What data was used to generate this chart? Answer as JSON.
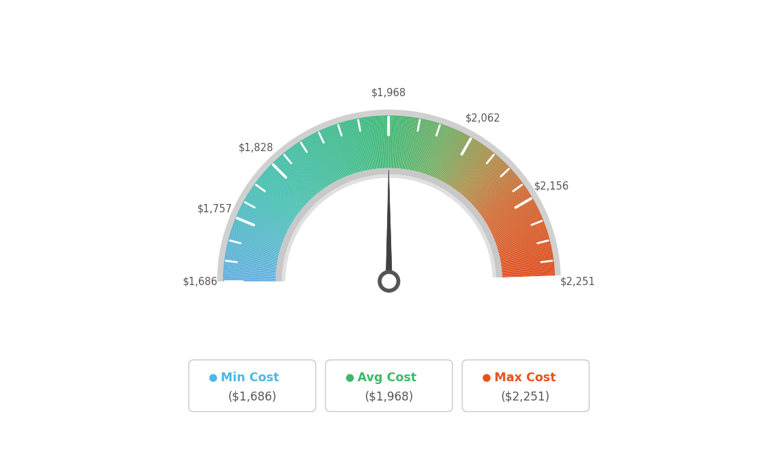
{
  "min_val": 1686,
  "avg_val": 1968,
  "max_val": 2251,
  "tick_labels": [
    "$1,686",
    "$1,757",
    "$1,828",
    "$1,968",
    "$2,062",
    "$2,156",
    "$2,251"
  ],
  "tick_values": [
    1686,
    1757,
    1828,
    1968,
    2062,
    2156,
    2251
  ],
  "legend_items": [
    {
      "label": "Min Cost",
      "value": "($1,686)",
      "color": "#4ab8e8"
    },
    {
      "label": "Avg Cost",
      "value": "($1,968)",
      "color": "#3cb96a"
    },
    {
      "label": "Max Cost",
      "value": "($2,251)",
      "color": "#e8521a"
    }
  ],
  "background_color": "#ffffff",
  "needle_value": 1968,
  "gradient_colors": [
    [
      0.0,
      [
        0.38,
        0.68,
        0.88
      ]
    ],
    [
      0.2,
      [
        0.27,
        0.75,
        0.7
      ]
    ],
    [
      0.4,
      [
        0.24,
        0.73,
        0.55
      ]
    ],
    [
      0.5,
      [
        0.24,
        0.72,
        0.45
      ]
    ],
    [
      0.62,
      [
        0.45,
        0.67,
        0.38
      ]
    ],
    [
      0.72,
      [
        0.68,
        0.55,
        0.28
      ]
    ],
    [
      0.82,
      [
        0.82,
        0.4,
        0.18
      ]
    ],
    [
      1.0,
      [
        0.88,
        0.28,
        0.1
      ]
    ]
  ]
}
